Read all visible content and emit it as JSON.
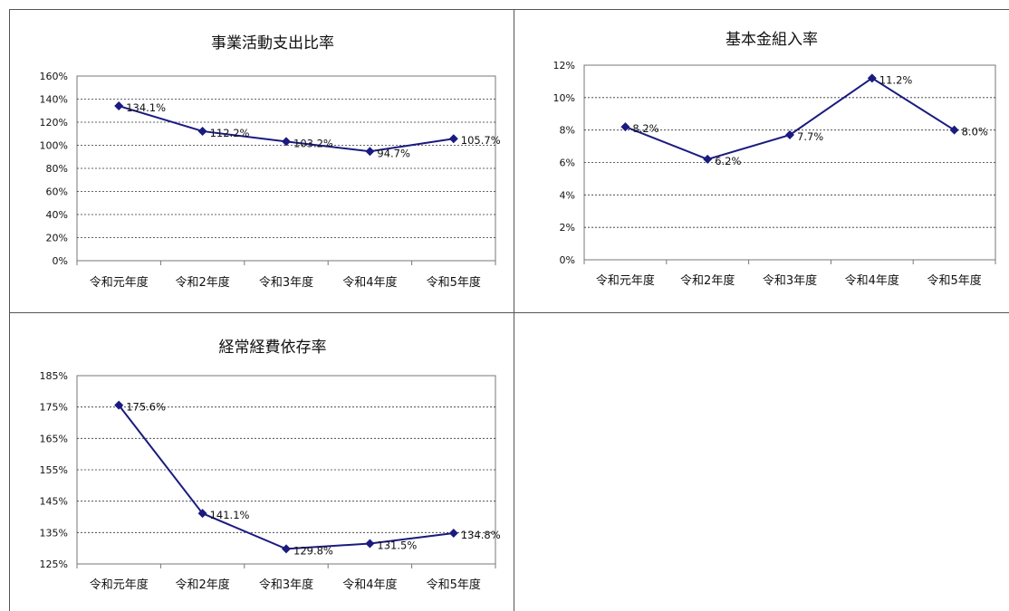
{
  "chart_data": [
    {
      "type": "line",
      "title": "事業活動支出比率",
      "categories": [
        "令和元年度",
        "令和2年度",
        "令和3年度",
        "令和4年度",
        "令和5年度"
      ],
      "values": [
        134.1,
        112.2,
        103.2,
        94.7,
        105.7
      ],
      "data_labels": [
        "134.1%",
        "112.2%",
        "103.2%",
        "94.7%",
        "105.7%"
      ],
      "ylim": [
        0,
        160
      ],
      "yticks": [
        "0%",
        "20%",
        "40%",
        "60%",
        "80%",
        "100%",
        "120%",
        "140%",
        "160%"
      ],
      "grid": true,
      "color": "#1a1a80"
    },
    {
      "type": "line",
      "title": "基本金組入率",
      "categories": [
        "令和元年度",
        "令和2年度",
        "令和3年度",
        "令和4年度",
        "令和5年度"
      ],
      "values": [
        8.2,
        6.2,
        7.7,
        11.2,
        8.0
      ],
      "data_labels": [
        "8.2%",
        "6.2%",
        "7.7%",
        "11.2%",
        "8.0%"
      ],
      "ylim": [
        0,
        12
      ],
      "yticks": [
        "0%",
        "2%",
        "4%",
        "6%",
        "8%",
        "10%",
        "12%"
      ],
      "grid": true,
      "color": "#1a1a80"
    },
    {
      "type": "line",
      "title": "経常経費依存率",
      "categories": [
        "令和元年度",
        "令和2年度",
        "令和3年度",
        "令和4年度",
        "令和5年度"
      ],
      "values": [
        175.6,
        141.1,
        129.8,
        131.5,
        134.8
      ],
      "data_labels": [
        "175.6%",
        "141.1%",
        "129.8%",
        "131.5%",
        "134.8%"
      ],
      "ylim": [
        125,
        185
      ],
      "yticks": [
        "125%",
        "135%",
        "145%",
        "155%",
        "165%",
        "175%",
        "185%"
      ],
      "grid": true,
      "color": "#1a1a80"
    }
  ]
}
